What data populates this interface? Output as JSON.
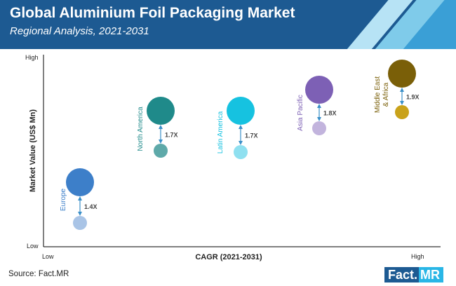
{
  "header": {
    "title": "Global Aluminium Foil Packaging Market",
    "subtitle": "Regional Analysis, 2021-2031"
  },
  "colors": {
    "header_bg": "#1d5a92",
    "stripe_light": "#7fcbea",
    "stripe_mid": "#3a9fd6"
  },
  "chart_data": {
    "type": "scatter",
    "xlabel": "CAGR (2021-2031)",
    "ylabel": "Market Value (US$ Mn)",
    "x_ticks": [
      "Low",
      "High"
    ],
    "y_ticks": [
      "Low",
      "High"
    ],
    "grid": false,
    "series": [
      {
        "name": "Europe",
        "multiplier": "1.4X",
        "color": "#3d7fc9",
        "color_small": "#a9c4e6"
      },
      {
        "name": "North America",
        "multiplier": "1.7X",
        "color": "#1f8a8a",
        "color_small": "#5ea9a9"
      },
      {
        "name": "Latin America",
        "multiplier": "1.7X",
        "color": "#16c2e0",
        "color_small": "#8fe0f0"
      },
      {
        "name": "Asia Pacific",
        "multiplier": "1.8X",
        "color": "#7d60b5",
        "color_small": "#c2b4dd"
      },
      {
        "name": "Middle East & Africa",
        "label_lines": [
          "Middle East",
          "& Africa"
        ],
        "multiplier": "1.9X",
        "color": "#7a5f08",
        "color_small": "#c9a21a"
      }
    ]
  },
  "footer": {
    "source": "Source: Fact.MR",
    "logo_part1": "Fact.",
    "logo_part2": "MR"
  }
}
